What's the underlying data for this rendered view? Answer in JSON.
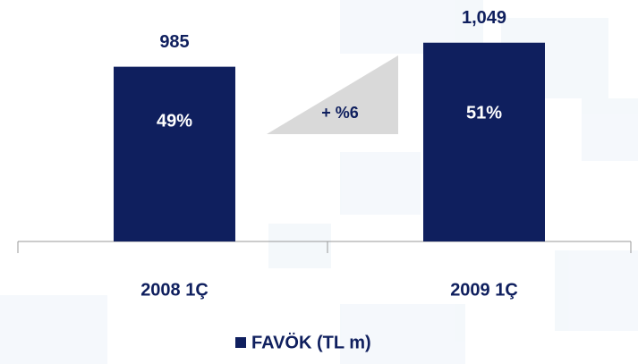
{
  "chart_data": {
    "type": "bar",
    "categories": [
      "2008 1Ç",
      "2009 1Ç"
    ],
    "series": [
      {
        "name": "FAVÖK (TL m)",
        "color": "#0f1f5e",
        "values": [
          985,
          1049
        ],
        "value_labels": [
          "985",
          "1,049"
        ]
      }
    ],
    "ylim": [
      520,
      1115
    ],
    "annotations": [
      "49%",
      "51%",
      "+ %6"
    ],
    "legend": "bottom"
  }
}
